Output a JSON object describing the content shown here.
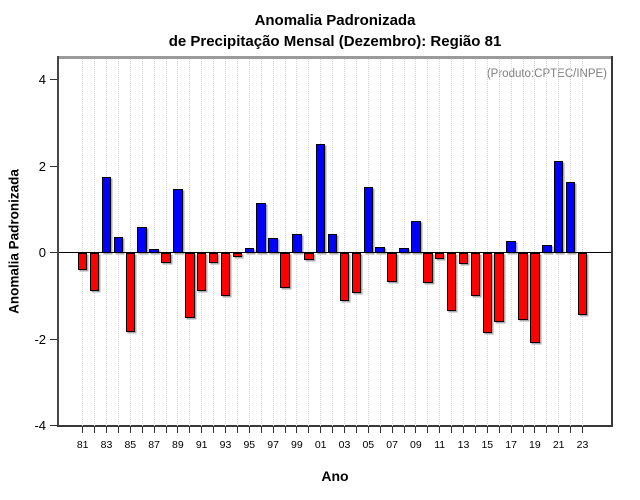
{
  "title": {
    "line1": "Anomalia Padronizada",
    "line2": "de Precipitação Mensal (Dezembro): Região 81"
  },
  "annotation": "(Produto:CPTEC/INPE)",
  "chart_data": {
    "type": "bar",
    "title": "Anomalia Padronizada de Precipitação Mensal (Dezembro): Região 81",
    "xlabel": "Ano",
    "ylabel": "Anomalia Padronizada",
    "ylim": [
      -4,
      4.5
    ],
    "yticks": [
      -4,
      -2,
      0,
      2,
      4
    ],
    "xtick_labels": [
      "81",
      "83",
      "85",
      "87",
      "89",
      "91",
      "93",
      "95",
      "97",
      "99",
      "01",
      "03",
      "05",
      "07",
      "09",
      "11",
      "13",
      "15",
      "17",
      "19",
      "21",
      "23"
    ],
    "grid": "vertical dotted line at every year",
    "legend_position": "none",
    "colors": {
      "positive_bar": "#0000ff",
      "negative_bar": "#ff0000",
      "bar_border": "#000000",
      "bar_shadow": "#ababab",
      "gridline": "#d6d6d6",
      "annotation_text": "#7f7f7f",
      "frame_top": "#9a9a9a",
      "frame_dark": "#3c3c3c",
      "background": "#ffffff"
    },
    "categories": [
      1981,
      1982,
      1983,
      1984,
      1985,
      1986,
      1987,
      1988,
      1989,
      1990,
      1991,
      1992,
      1993,
      1994,
      1995,
      1996,
      1997,
      1998,
      1999,
      2000,
      2001,
      2002,
      2003,
      2004,
      2005,
      2006,
      2007,
      2008,
      2009,
      2010,
      2011,
      2012,
      2013,
      2014,
      2015,
      2016,
      2017,
      2018,
      2019,
      2020,
      2021,
      2022,
      2023
    ],
    "values": [
      -0.41,
      -0.88,
      1.74,
      0.35,
      -1.84,
      0.6,
      0.09,
      -0.23,
      1.47,
      -1.51,
      -0.9,
      -0.24,
      -1.01,
      -0.1,
      0.11,
      1.15,
      0.33,
      -0.81,
      0.42,
      -0.17,
      2.51,
      0.42,
      -1.12,
      -0.94,
      1.51,
      0.14,
      -0.68,
      0.1,
      0.73,
      -0.7,
      -0.16,
      -1.34,
      -0.26,
      -1.0,
      -1.86,
      -1.6,
      0.26,
      -1.56,
      -2.1,
      0.17,
      2.13,
      1.63,
      -1.44
    ]
  }
}
